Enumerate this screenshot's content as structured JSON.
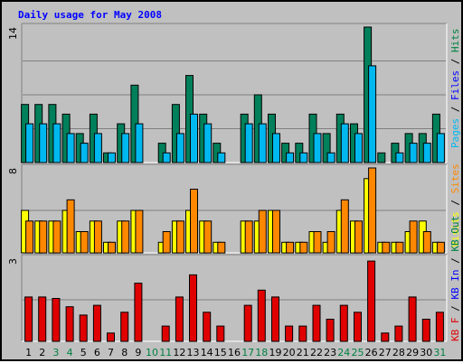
{
  "chart_data": {
    "type": "bar",
    "title": "Daily usage for May 2008",
    "colors": {
      "background": "#c0c0c0",
      "plot_background": "#c0c0c0",
      "grid": "#808080",
      "title": "#0000ff",
      "tick": "#000000",
      "weekend_tick": "#008040",
      "hits": "#00805a",
      "files": "#00b8f0",
      "visits": "#ffff00",
      "sites": "#ff8800",
      "kbin": "#0000ff",
      "kbout": "#008040",
      "kbf": "#e00000"
    },
    "days": [
      "1",
      "2",
      "3",
      "4",
      "5",
      "6",
      "7",
      "8",
      "9",
      "10",
      "11",
      "12",
      "13",
      "14",
      "15",
      "16",
      "17",
      "18",
      "19",
      "20",
      "21",
      "22",
      "23",
      "24",
      "25",
      "26",
      "27",
      "28",
      "29",
      "30",
      "31"
    ],
    "weekend_days": [
      "3",
      "4",
      "10",
      "11",
      "17",
      "18",
      "24",
      "25",
      "31"
    ],
    "panels": [
      {
        "id": "hits-files",
        "max_label": "14",
        "ymax": 14,
        "legend": [
          {
            "text": "Pages",
            "color": "#00b8f0"
          },
          {
            "text": " / ",
            "color": "#000000"
          },
          {
            "text": "Files",
            "color": "#0000ff"
          },
          {
            "text": " / ",
            "color": "#000000"
          },
          {
            "text": "Hits",
            "color": "#008040"
          }
        ],
        "series": [
          {
            "name": "Hits",
            "color": "#00805a",
            "values": [
              6,
              6,
              6,
              5,
              3,
              5,
              1,
              4,
              8,
              0,
              2,
              6,
              9,
              5,
              2,
              0,
              5,
              7,
              5,
              2,
              2,
              5,
              3,
              5,
              4,
              14,
              1,
              2,
              3,
              3,
              5
            ]
          },
          {
            "name": "Files",
            "color": "#00b8f0",
            "values": [
              4,
              4,
              4,
              3,
              2,
              3,
              1,
              3,
              4,
              0,
              1,
              3,
              5,
              4,
              1,
              0,
              4,
              4,
              3,
              1,
              1,
              3,
              1,
              4,
              3,
              10,
              0,
              1,
              2,
              2,
              3
            ]
          }
        ]
      },
      {
        "id": "visits-sites",
        "max_label": "8",
        "ymax": 8,
        "legend": [
          {
            "text": "Visits",
            "color": "#ffff00"
          },
          {
            "text": " / ",
            "color": "#000000"
          },
          {
            "text": "Sites",
            "color": "#ff8800"
          }
        ],
        "series": [
          {
            "name": "Visits",
            "color": "#ffff00",
            "values": [
              4,
              3,
              3,
              4,
              2,
              3,
              1,
              3,
              4,
              0,
              1,
              3,
              4,
              3,
              1,
              0,
              3,
              3,
              4,
              1,
              1,
              2,
              1,
              4,
              3,
              7,
              1,
              1,
              2,
              3,
              1
            ]
          },
          {
            "name": "Sites",
            "color": "#ff8800",
            "values": [
              3,
              3,
              3,
              5,
              2,
              3,
              1,
              3,
              4,
              0,
              2,
              3,
              6,
              3,
              1,
              0,
              3,
              4,
              4,
              1,
              1,
              2,
              2,
              5,
              3,
              8,
              1,
              1,
              3,
              2,
              1
            ]
          }
        ]
      },
      {
        "id": "kb",
        "max_label": "3",
        "ymax": 3,
        "legend": [
          {
            "text": "KB F",
            "color": "#e00000"
          },
          {
            "text": " / ",
            "color": "#000000"
          },
          {
            "text": "KB In",
            "color": "#0000ff"
          },
          {
            "text": " / ",
            "color": "#000000"
          },
          {
            "text": "KB Out",
            "color": "#008040"
          }
        ],
        "series": [
          {
            "name": "KB F",
            "color": "#e00000",
            "values": [
              1.6,
              1.6,
              1.55,
              1.25,
              0.95,
              1.3,
              0.3,
              1.05,
              2.1,
              0,
              0.55,
              1.6,
              2.4,
              1.05,
              0.55,
              0,
              1.3,
              1.85,
              1.6,
              0.55,
              0.55,
              1.3,
              0.8,
              1.3,
              1.05,
              2.9,
              0.3,
              0.55,
              1.6,
              0.8,
              1.05
            ]
          }
        ]
      }
    ]
  }
}
